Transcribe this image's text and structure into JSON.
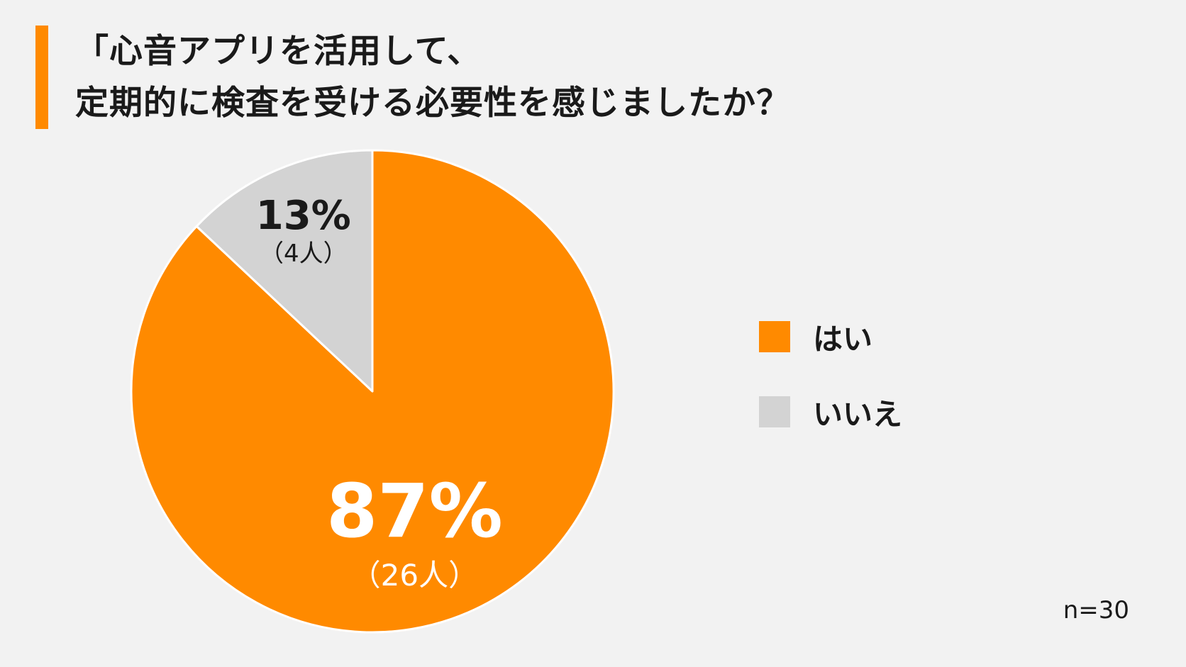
{
  "title": {
    "line1": "「心音アプリを活用して、",
    "line2": "定期的に検査を受ける必要性を感じましたか？"
  },
  "chart_data": {
    "type": "pie",
    "slices": [
      {
        "label": "はい",
        "percent": 87,
        "percent_text": "87%",
        "count_text": "（26人）",
        "color": "#ff8a00"
      },
      {
        "label": "いいえ",
        "percent": 13,
        "percent_text": "13%",
        "count_text": "（4人）",
        "color": "#d3d3d3"
      }
    ],
    "legend_position": "right",
    "note": "n=30"
  }
}
